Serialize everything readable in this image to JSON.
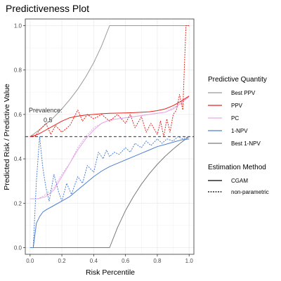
{
  "chart_data": {
    "type": "line",
    "title": "Predictiveness Plot",
    "xlabel": "Risk Percentile",
    "ylabel": "Predicted Risk / Predictive Value",
    "xlim": [
      -0.03,
      1.03
    ],
    "ylim": [
      -0.03,
      1.03
    ],
    "x_ticks": [
      0.0,
      0.2,
      0.4,
      0.6,
      0.8,
      1.0
    ],
    "x_tick_labels": [
      "0.0",
      "0.2",
      "0.4",
      "0.6",
      "0.8",
      "1.0"
    ],
    "y_ticks": [
      0.0,
      0.2,
      0.4,
      0.6,
      0.8,
      1.0
    ],
    "y_tick_labels": [
      "0.0",
      "0.2",
      "0.4",
      "0.6",
      "0.8",
      "1.0"
    ],
    "grid": true,
    "legend_placement": "right",
    "prevalence": 0.5,
    "annotation": {
      "line1": "Prevalence:",
      "line2": "0.5"
    },
    "legend_quantity": {
      "title": "Predictive Quantity",
      "items": [
        {
          "label": "Best PPV",
          "color": "#999999"
        },
        {
          "label": "PPV",
          "color": "#e8221a"
        },
        {
          "label": "PC",
          "color": "#e6a6e6"
        },
        {
          "label": "1-NPV",
          "color": "#4a7ed6"
        },
        {
          "label": "Best 1-NPV",
          "color": "#7a7a7a"
        }
      ]
    },
    "legend_method": {
      "title": "Estimation Method",
      "items": [
        {
          "label": "CGAM",
          "style": "solid"
        },
        {
          "label": "non-parametric",
          "style": "dotted"
        }
      ]
    },
    "series": [
      {
        "name": "Best PPV",
        "method": "CGAM",
        "color": "#999999",
        "dash": "solid",
        "x": [
          0,
          0.05,
          0.1,
          0.15,
          0.2,
          0.25,
          0.3,
          0.35,
          0.4,
          0.45,
          0.5,
          0.6,
          0.7,
          0.8,
          0.9,
          1.0
        ],
        "y": [
          0.5,
          0.526,
          0.556,
          0.588,
          0.625,
          0.667,
          0.714,
          0.769,
          0.833,
          0.909,
          1.0,
          1.0,
          1.0,
          1.0,
          1.0,
          1.0
        ]
      },
      {
        "name": "Best 1-NPV",
        "method": "CGAM",
        "color": "#7a7a7a",
        "dash": "solid",
        "x": [
          0,
          0.1,
          0.2,
          0.3,
          0.4,
          0.5,
          0.55,
          0.6,
          0.65,
          0.7,
          0.75,
          0.8,
          0.85,
          0.9,
          0.95,
          1.0
        ],
        "y": [
          0,
          0,
          0,
          0,
          0,
          0,
          0.0909,
          0.1667,
          0.2308,
          0.2857,
          0.3333,
          0.375,
          0.4118,
          0.4444,
          0.4737,
          0.5
        ]
      },
      {
        "name": "PC",
        "method": "CGAM",
        "color": "#e6a6e6",
        "dash": "solid",
        "x": [
          0,
          0.05,
          0.1,
          0.15,
          0.2,
          0.25,
          0.3,
          0.35,
          0.4,
          0.45,
          0.5,
          0.55,
          0.6,
          0.65,
          0.7,
          0.75,
          0.8,
          0.85,
          0.9,
          0.95,
          1.0
        ],
        "y": [
          0.22,
          0.22,
          0.23,
          0.26,
          0.32,
          0.38,
          0.44,
          0.49,
          0.53,
          0.56,
          0.575,
          0.58,
          0.585,
          0.59,
          0.595,
          0.6,
          0.605,
          0.61,
          0.625,
          0.65,
          0.68
        ]
      },
      {
        "name": "PC",
        "method": "non-parametric",
        "color": "#e6a6e6",
        "dash": "dotted",
        "x": [
          0,
          0.05,
          0.1,
          0.15,
          0.2,
          0.25,
          0.3,
          0.35,
          0.4,
          0.45,
          0.5,
          0.55,
          0.6,
          0.65,
          0.7,
          0.75,
          0.8,
          0.85,
          0.9,
          0.95,
          1.0
        ],
        "y": [
          0.22,
          0.22,
          0.24,
          0.27,
          0.33,
          0.38,
          0.45,
          0.5,
          0.54,
          0.56,
          0.575,
          0.58,
          0.585,
          0.59,
          0.595,
          0.6,
          0.605,
          0.61,
          0.63,
          0.655,
          0.68
        ]
      },
      {
        "name": "PPV",
        "method": "CGAM",
        "color": "#e8221a",
        "dash": "solid",
        "x": [
          0,
          0.05,
          0.1,
          0.15,
          0.2,
          0.25,
          0.3,
          0.35,
          0.4,
          0.45,
          0.5,
          0.55,
          0.6,
          0.65,
          0.7,
          0.75,
          0.8,
          0.85,
          0.9,
          0.95,
          1.0
        ],
        "y": [
          0.5,
          0.51,
          0.53,
          0.55,
          0.57,
          0.585,
          0.592,
          0.597,
          0.6,
          0.603,
          0.605,
          0.606,
          0.607,
          0.608,
          0.61,
          0.612,
          0.617,
          0.625,
          0.64,
          0.66,
          0.683
        ]
      },
      {
        "name": "PPV",
        "method": "non-parametric",
        "color": "#e8221a",
        "dash": "dotted",
        "x": [
          0,
          0.03,
          0.06,
          0.1,
          0.13,
          0.16,
          0.2,
          0.25,
          0.3,
          0.33,
          0.36,
          0.4,
          0.45,
          0.5,
          0.55,
          0.6,
          0.63,
          0.66,
          0.7,
          0.73,
          0.76,
          0.8,
          0.82,
          0.84,
          0.86,
          0.88,
          0.9,
          0.92,
          0.94,
          0.96,
          0.98,
          1.0
        ],
        "y": [
          0.5,
          0.5,
          0.53,
          0.56,
          0.51,
          0.55,
          0.52,
          0.55,
          0.62,
          0.57,
          0.6,
          0.58,
          0.6,
          0.57,
          0.6,
          0.56,
          0.6,
          0.54,
          0.59,
          0.52,
          0.56,
          0.51,
          0.57,
          0.5,
          0.58,
          0.52,
          0.6,
          0.62,
          0.69,
          0.62,
          1.0,
          1.0
        ]
      },
      {
        "name": "1-NPV",
        "method": "CGAM",
        "color": "#4a7ed6",
        "dash": "solid",
        "x": [
          0,
          0.02,
          0.04,
          0.06,
          0.08,
          0.1,
          0.15,
          0.2,
          0.25,
          0.3,
          0.35,
          0.4,
          0.45,
          0.5,
          0.55,
          0.6,
          0.65,
          0.7,
          0.75,
          0.8,
          0.85,
          0.9,
          0.95,
          1.0
        ],
        "y": [
          0.0,
          0.0,
          0.11,
          0.14,
          0.16,
          0.17,
          0.19,
          0.21,
          0.23,
          0.26,
          0.29,
          0.32,
          0.345,
          0.365,
          0.38,
          0.395,
          0.41,
          0.425,
          0.44,
          0.455,
          0.465,
          0.475,
          0.485,
          0.49
        ]
      },
      {
        "name": "1-NPV",
        "method": "non-parametric",
        "color": "#4a7ed6",
        "dash": "dotted",
        "x": [
          0,
          0.02,
          0.04,
          0.06,
          0.08,
          0.1,
          0.12,
          0.15,
          0.18,
          0.2,
          0.23,
          0.26,
          0.3,
          0.33,
          0.36,
          0.4,
          0.43,
          0.46,
          0.48,
          0.5,
          0.53,
          0.56,
          0.6,
          0.63,
          0.66,
          0.7,
          0.73,
          0.76,
          0.8,
          0.83,
          0.86,
          0.9,
          0.93,
          0.96,
          1.0
        ],
        "y": [
          0.0,
          0.0,
          0.3,
          0.5,
          0.36,
          0.27,
          0.21,
          0.33,
          0.25,
          0.21,
          0.29,
          0.24,
          0.32,
          0.29,
          0.37,
          0.34,
          0.43,
          0.4,
          0.44,
          0.41,
          0.43,
          0.42,
          0.45,
          0.43,
          0.47,
          0.45,
          0.48,
          0.46,
          0.49,
          0.47,
          0.49,
          0.48,
          0.5,
          0.49,
          0.5
        ]
      }
    ]
  }
}
